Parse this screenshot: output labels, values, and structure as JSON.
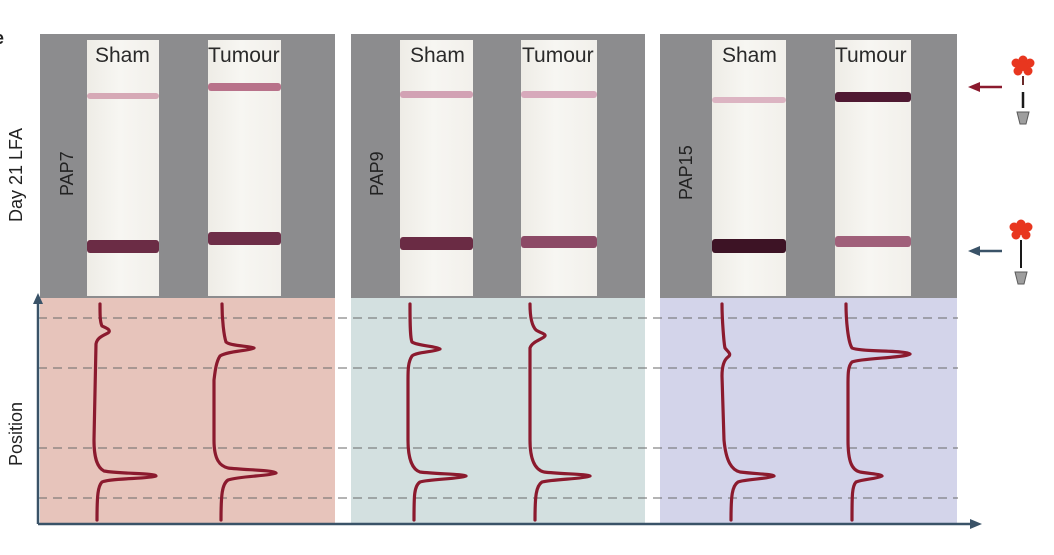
{
  "figure": {
    "row_label_top": "Day 21 LFA",
    "row_label_bottom": "Position",
    "panel_letter": "e"
  },
  "panels": [
    {
      "name": "PAP7",
      "strips": [
        "Sham",
        "Tumour"
      ],
      "bg": "#e7c4bb"
    },
    {
      "name": "PAP9",
      "strips": [
        "Sham",
        "Tumour"
      ],
      "bg": "#d3e0e0"
    },
    {
      "name": "PAP15",
      "strips": [
        "Sham",
        "Tumour"
      ],
      "bg": "#d3d4ea"
    }
  ],
  "colors": {
    "trace": "#8b1a2e",
    "test_arrow": "#8b1a2e",
    "control_arrow": "#3a5368",
    "flower": "#e8361f",
    "axis": "#3a5368"
  },
  "icons": [
    "test-line-probe-icon",
    "control-line-probe-icon"
  ]
}
